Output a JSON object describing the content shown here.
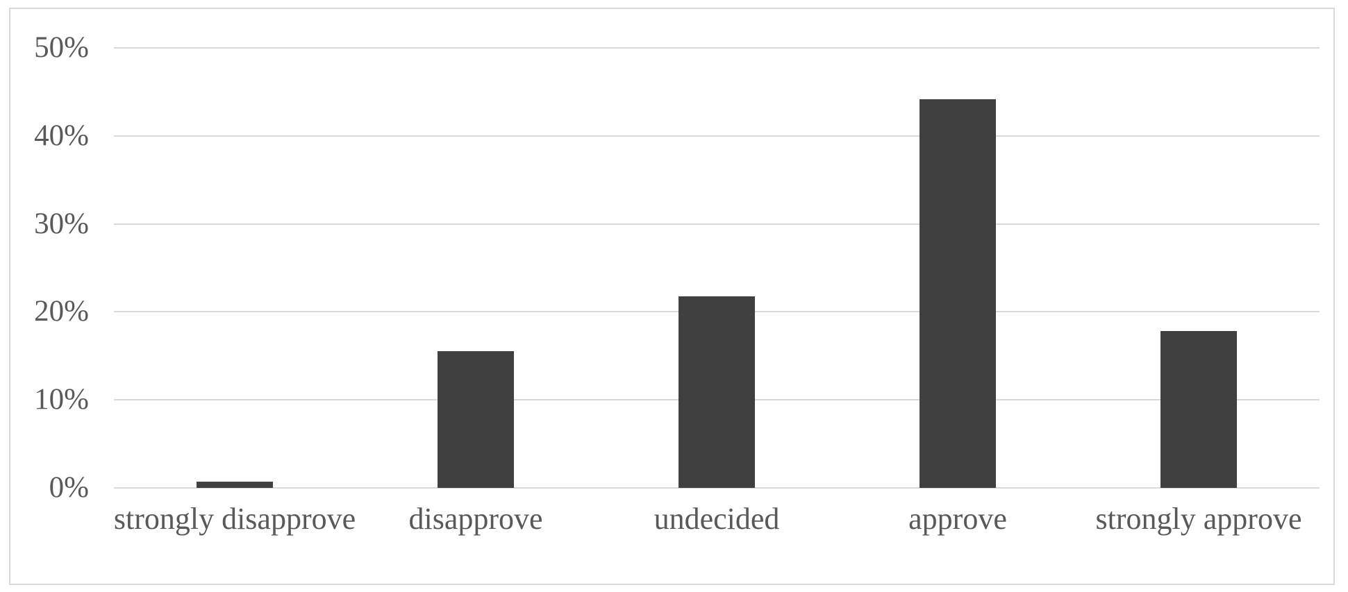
{
  "chart_data": {
    "type": "bar",
    "categories": [
      "strongly disapprove",
      "disapprove",
      "undecided",
      "approve",
      "strongly approve"
    ],
    "values": [
      0.7,
      15.5,
      21.8,
      44.2,
      17.8
    ],
    "title": "",
    "xlabel": "",
    "ylabel": "",
    "ylim": [
      0,
      50
    ],
    "yticks": [
      0,
      10,
      20,
      30,
      40,
      50
    ],
    "ytick_labels": [
      "0%",
      "10%",
      "20%",
      "30%",
      "40%",
      "50%"
    ],
    "grid": true,
    "legend": false,
    "colors": {
      "bar": "#404040",
      "gridline": "#d9d9d9",
      "chart_border": "#d9d9d9",
      "text": "#595959",
      "background": "#ffffff"
    }
  }
}
